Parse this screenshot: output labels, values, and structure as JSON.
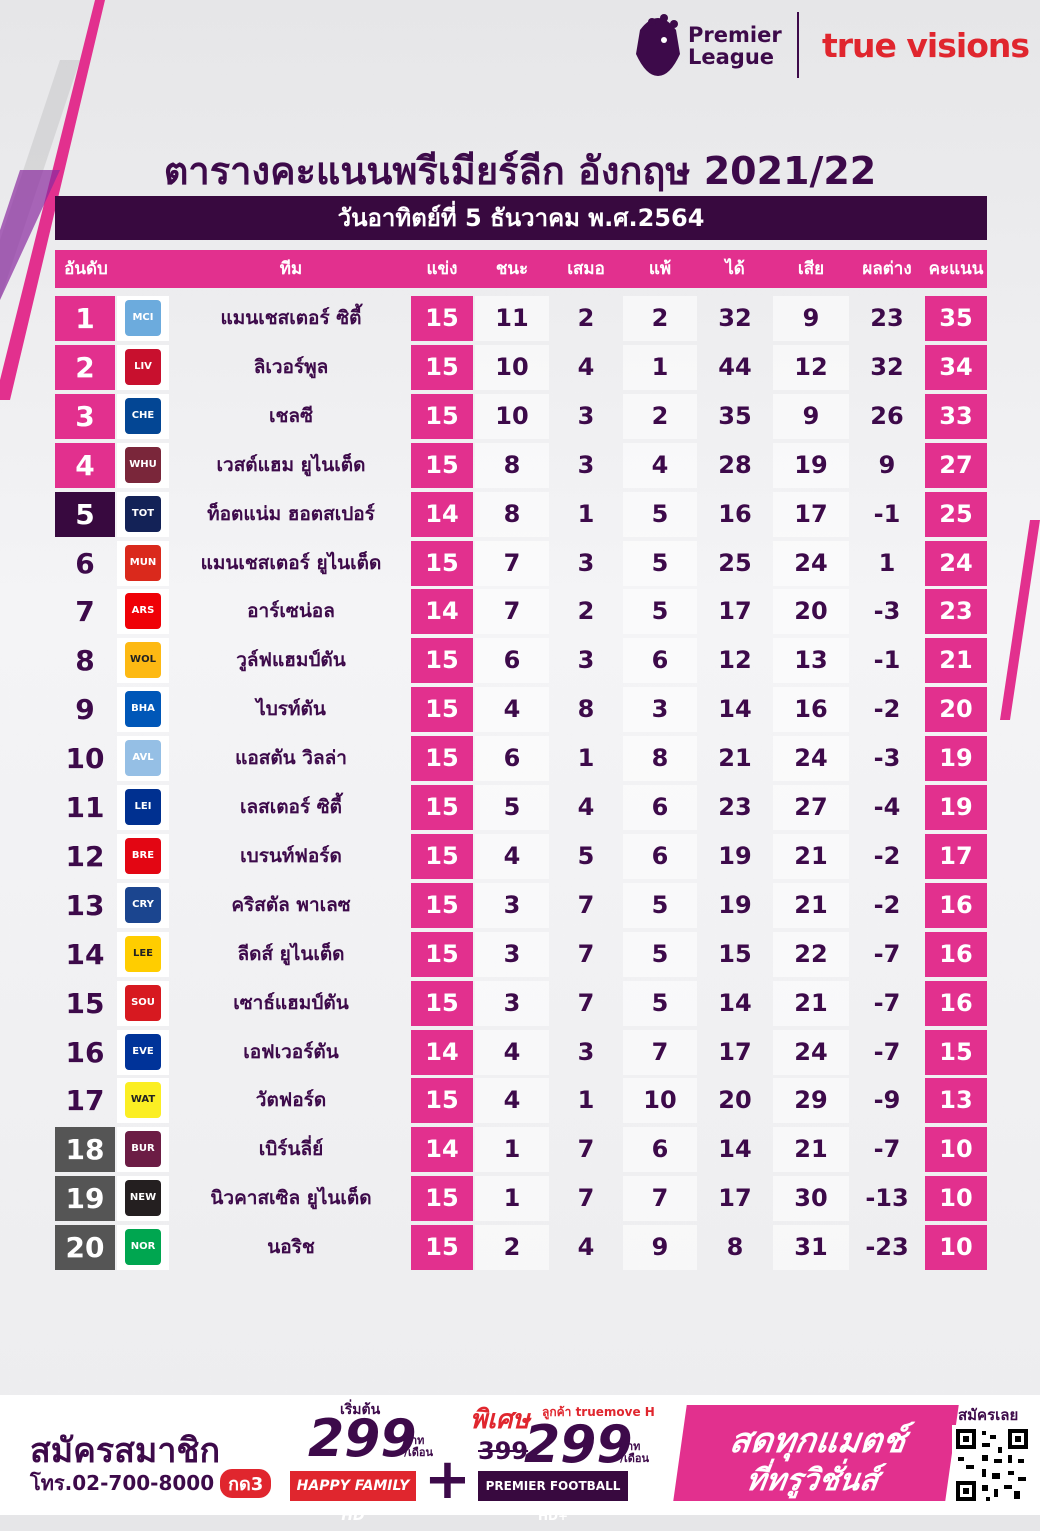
{
  "header": {
    "pl_logo_text": "Premier\nLeague",
    "pl_line1": "Premier",
    "pl_line2": "League",
    "tv_logo_text": "true visions"
  },
  "title": "ตารางคะแนนพรีเมียร์ลีก อังกฤษ 2021/22",
  "date": "วันอาทิตย์ที่ 5 ธันวาคม พ.ศ.2564",
  "columns": [
    "อันดับ",
    "ทีม",
    "แข่ง",
    "ชนะ",
    "เสมอ",
    "แพ้",
    "ได้",
    "เสีย",
    "ผลต่าง",
    "คะแนน"
  ],
  "colors": {
    "pink": "#e2308e",
    "purple": "#3d0a4a",
    "dark_purple": "#38093f",
    "grey": "#555555",
    "red": "#e0262e"
  },
  "rows": [
    {
      "rank": "1",
      "team": "แมนเชสเตอร์ ซิตี้",
      "p": "15",
      "w": "11",
      "d": "2",
      "l": "2",
      "gf": "32",
      "ga": "9",
      "gd": "23",
      "pts": "35",
      "rank_style": "pink",
      "crest": "MCI",
      "crest_color": "#6cabdd"
    },
    {
      "rank": "2",
      "team": "ลิเวอร์พูล",
      "p": "15",
      "w": "10",
      "d": "4",
      "l": "1",
      "gf": "44",
      "ga": "12",
      "gd": "32",
      "pts": "34",
      "rank_style": "pink",
      "crest": "LIV",
      "crest_color": "#c8102e"
    },
    {
      "rank": "3",
      "team": "เชลซี",
      "p": "15",
      "w": "10",
      "d": "3",
      "l": "2",
      "gf": "35",
      "ga": "9",
      "gd": "26",
      "pts": "33",
      "rank_style": "pink",
      "crest": "CHE",
      "crest_color": "#034694"
    },
    {
      "rank": "4",
      "team": "เวสต์แฮม ยูไนเต็ด",
      "p": "15",
      "w": "8",
      "d": "3",
      "l": "4",
      "gf": "28",
      "ga": "19",
      "gd": "9",
      "pts": "27",
      "rank_style": "pink",
      "crest": "WHU",
      "crest_color": "#7a263a"
    },
    {
      "rank": "5",
      "team": "ท็อตแน่ม ฮอตสเปอร์",
      "p": "14",
      "w": "8",
      "d": "1",
      "l": "5",
      "gf": "16",
      "ga": "17",
      "gd": "-1",
      "pts": "25",
      "rank_style": "purple",
      "crest": "TOT",
      "crest_color": "#132257"
    },
    {
      "rank": "6",
      "team": "แมนเชสเตอร์ ยูไนเต็ด",
      "p": "15",
      "w": "7",
      "d": "3",
      "l": "5",
      "gf": "25",
      "ga": "24",
      "gd": "1",
      "pts": "24",
      "rank_style": "none",
      "crest": "MUN",
      "crest_color": "#da291c"
    },
    {
      "rank": "7",
      "team": "อาร์เซน่อล",
      "p": "14",
      "w": "7",
      "d": "2",
      "l": "5",
      "gf": "17",
      "ga": "20",
      "gd": "-3",
      "pts": "23",
      "rank_style": "none",
      "crest": "ARS",
      "crest_color": "#ef0107"
    },
    {
      "rank": "8",
      "team": "วูล์ฟแฮมป์ตัน",
      "p": "15",
      "w": "6",
      "d": "3",
      "l": "6",
      "gf": "12",
      "ga": "13",
      "gd": "-1",
      "pts": "21",
      "rank_style": "none",
      "crest": "WOL",
      "crest_color": "#fdb913"
    },
    {
      "rank": "9",
      "team": "ไบรท์ตัน",
      "p": "15",
      "w": "4",
      "d": "8",
      "l": "3",
      "gf": "14",
      "ga": "16",
      "gd": "-2",
      "pts": "20",
      "rank_style": "none",
      "crest": "BHA",
      "crest_color": "#0057b8"
    },
    {
      "rank": "10",
      "team": "แอสตัน วิลล่า",
      "p": "15",
      "w": "6",
      "d": "1",
      "l": "8",
      "gf": "21",
      "ga": "24",
      "gd": "-3",
      "pts": "19",
      "rank_style": "none",
      "crest": "AVL",
      "crest_color": "#95bfe5"
    },
    {
      "rank": "11",
      "team": "เลสเตอร์ ซิตี้",
      "p": "15",
      "w": "5",
      "d": "4",
      "l": "6",
      "gf": "23",
      "ga": "27",
      "gd": "-4",
      "pts": "19",
      "rank_style": "none",
      "crest": "LEI",
      "crest_color": "#003090"
    },
    {
      "rank": "12",
      "team": "เบรนท์ฟอร์ด",
      "p": "15",
      "w": "4",
      "d": "5",
      "l": "6",
      "gf": "19",
      "ga": "21",
      "gd": "-2",
      "pts": "17",
      "rank_style": "none",
      "crest": "BRE",
      "crest_color": "#e30613"
    },
    {
      "rank": "13",
      "team": "คริสตัล พาเลซ",
      "p": "15",
      "w": "3",
      "d": "7",
      "l": "5",
      "gf": "19",
      "ga": "21",
      "gd": "-2",
      "pts": "16",
      "rank_style": "none",
      "crest": "CRY",
      "crest_color": "#1b458f"
    },
    {
      "rank": "14",
      "team": "ลีดส์ ยูไนเต็ด",
      "p": "15",
      "w": "3",
      "d": "7",
      "l": "5",
      "gf": "15",
      "ga": "22",
      "gd": "-7",
      "pts": "16",
      "rank_style": "none",
      "crest": "LEE",
      "crest_color": "#ffcd00"
    },
    {
      "rank": "15",
      "team": "เซาธ์แฮมป์ตัน",
      "p": "15",
      "w": "3",
      "d": "7",
      "l": "5",
      "gf": "14",
      "ga": "21",
      "gd": "-7",
      "pts": "16",
      "rank_style": "none",
      "crest": "SOU",
      "crest_color": "#d71920"
    },
    {
      "rank": "16",
      "team": "เอฟเวอร์ตัน",
      "p": "14",
      "w": "4",
      "d": "3",
      "l": "7",
      "gf": "17",
      "ga": "24",
      "gd": "-7",
      "pts": "15",
      "rank_style": "none",
      "crest": "EVE",
      "crest_color": "#003399"
    },
    {
      "rank": "17",
      "team": "วัตฟอร์ด",
      "p": "15",
      "w": "4",
      "d": "1",
      "l": "10",
      "gf": "20",
      "ga": "29",
      "gd": "-9",
      "pts": "13",
      "rank_style": "none",
      "crest": "WAT",
      "crest_color": "#fbee23"
    },
    {
      "rank": "18",
      "team": "เบิร์นลี่ย์",
      "p": "14",
      "w": "1",
      "d": "7",
      "l": "6",
      "gf": "14",
      "ga": "21",
      "gd": "-7",
      "pts": "10",
      "rank_style": "grey",
      "crest": "BUR",
      "crest_color": "#6c1d45"
    },
    {
      "rank": "19",
      "team": "นิวคาสเซิล ยูไนเต็ด",
      "p": "15",
      "w": "1",
      "d": "7",
      "l": "7",
      "gf": "17",
      "ga": "30",
      "gd": "-13",
      "pts": "10",
      "rank_style": "grey",
      "crest": "NEW",
      "crest_color": "#241f20"
    },
    {
      "rank": "20",
      "team": "นอริช",
      "p": "15",
      "w": "2",
      "d": "4",
      "l": "9",
      "gf": "8",
      "ga": "31",
      "gd": "-23",
      "pts": "10",
      "rank_style": "grey",
      "crest": "NOR",
      "crest_color": "#00a650"
    }
  ],
  "footer": {
    "title": "สมัครสมาชิก",
    "phone": "โทร.02-700-8000",
    "dial": "กด3",
    "start_label": "เริ่มต้น",
    "price1": "299",
    "unit1": "บาท\n/เดือน",
    "unit_baht": "บาท",
    "unit_month": "/เดือน",
    "happy_label": "HAPPY FAMILY HD",
    "special": "พิเศษ",
    "customer": "ลูกค้า truemove H",
    "old_price": "399",
    "price2": "299",
    "pfhd_label": "PREMIER FOOTBALL HD+",
    "live1": "สดทุกแมตช์",
    "live2": "ที่ทรูวิชั่นส์",
    "qr_label": "สมัครเลย"
  }
}
